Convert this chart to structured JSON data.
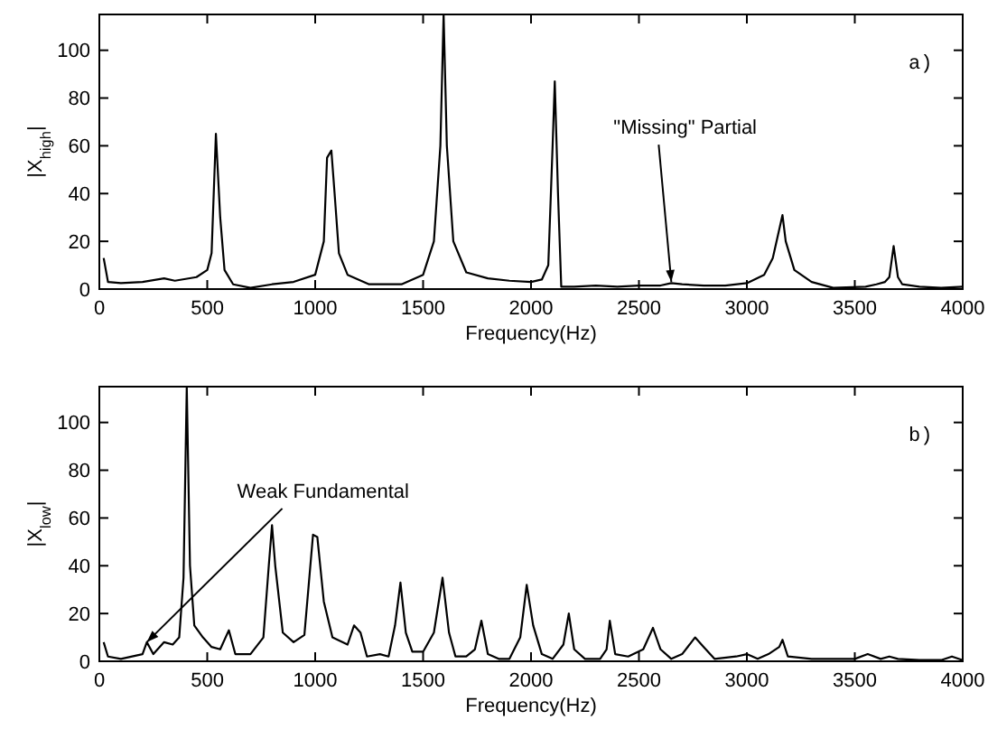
{
  "chart_data": [
    {
      "type": "line",
      "xlabel": "Frequency(Hz)",
      "ylabel": "|X$_{high}$|",
      "xlim": [
        0,
        4000
      ],
      "ylim": [
        0,
        115
      ],
      "xticks": [
        0,
        500,
        1000,
        1500,
        2000,
        2500,
        3000,
        3500,
        4000
      ],
      "yticks": [
        0,
        20,
        40,
        60,
        80,
        100
      ],
      "grid": false,
      "annotations": [
        "a)",
        {
          "text": "\"Missing\" Partial",
          "x": 2650,
          "y": 3
        }
      ],
      "series": [
        {
          "color": "#000000",
          "x": [
            20,
            40,
            100,
            200,
            300,
            350,
            450,
            500,
            520,
            540,
            560,
            580,
            620,
            700,
            800,
            900,
            1000,
            1040,
            1055,
            1075,
            1090,
            1110,
            1150,
            1250,
            1400,
            1500,
            1550,
            1580,
            1595,
            1610,
            1640,
            1700,
            1800,
            1900,
            2000,
            2050,
            2080,
            2100,
            2110,
            2125,
            2140,
            2200,
            2300,
            2400,
            2500,
            2600,
            2650,
            2700,
            2800,
            2900,
            3000,
            3080,
            3120,
            3150,
            3165,
            3180,
            3220,
            3300,
            3400,
            3550,
            3600,
            3640,
            3660,
            3680,
            3700,
            3720,
            3800,
            3900,
            4000
          ],
          "values": [
            13,
            3,
            2.5,
            3,
            4.5,
            3.5,
            5,
            8,
            15,
            65,
            30,
            8,
            2,
            0.5,
            2,
            3,
            6,
            20,
            55,
            58,
            40,
            15,
            6,
            2,
            2,
            6,
            20,
            60,
            115,
            60,
            20,
            7,
            4.5,
            3.5,
            3,
            4,
            10,
            60,
            87,
            40,
            1,
            1,
            1.5,
            1,
            1.5,
            1.5,
            2.5,
            2,
            1.5,
            1.5,
            2.5,
            6,
            13,
            25,
            31,
            20,
            8,
            3,
            0.5,
            1,
            2,
            3,
            5,
            18,
            5,
            2,
            1,
            0.5,
            1
          ]
        }
      ]
    },
    {
      "type": "line",
      "xlabel": "Frequency(Hz)",
      "ylabel": "|X$_{low}$|",
      "xlim": [
        0,
        4000
      ],
      "ylim": [
        0,
        115
      ],
      "xticks": [
        0,
        500,
        1000,
        1500,
        2000,
        2500,
        3000,
        3500,
        4000
      ],
      "yticks": [
        0,
        20,
        40,
        60,
        80,
        100
      ],
      "grid": false,
      "annotations": [
        "b)",
        {
          "text": "Weak Fundamental",
          "x": 220,
          "y": 8
        }
      ],
      "series": [
        {
          "color": "#000000",
          "x": [
            20,
            40,
            100,
            200,
            220,
            250,
            300,
            340,
            370,
            390,
            405,
            420,
            440,
            480,
            520,
            560,
            600,
            630,
            700,
            760,
            785,
            800,
            815,
            850,
            900,
            950,
            990,
            1010,
            1040,
            1080,
            1150,
            1180,
            1210,
            1240,
            1300,
            1340,
            1370,
            1395,
            1420,
            1450,
            1500,
            1550,
            1590,
            1620,
            1650,
            1700,
            1740,
            1770,
            1800,
            1850,
            1900,
            1950,
            1980,
            2010,
            2050,
            2100,
            2150,
            2175,
            2200,
            2250,
            2320,
            2350,
            2365,
            2390,
            2450,
            2520,
            2565,
            2600,
            2650,
            2700,
            2760,
            2800,
            2850,
            2950,
            3000,
            3050,
            3100,
            3150,
            3165,
            3190,
            3300,
            3500,
            3560,
            3620,
            3660,
            3700,
            3800,
            3900,
            3950,
            4000
          ],
          "values": [
            8,
            2,
            1,
            3,
            8,
            3,
            8,
            7,
            10,
            35,
            115,
            40,
            15,
            10,
            6,
            5,
            13,
            3,
            3,
            10,
            40,
            57,
            40,
            12,
            8,
            11,
            53,
            52,
            25,
            10,
            7,
            15,
            12,
            2,
            3,
            2,
            15,
            33,
            12,
            4,
            4,
            12,
            35,
            12,
            2,
            2,
            5,
            17,
            3,
            1,
            1,
            10,
            32,
            15,
            3,
            1,
            7,
            20,
            5,
            1,
            1,
            5,
            17,
            3,
            2,
            5,
            14,
            5,
            1,
            3,
            10,
            6,
            1,
            2,
            3,
            1,
            3,
            6,
            9,
            2,
            1,
            1,
            3,
            1,
            2,
            1,
            0.5,
            0.5,
            2,
            0.5
          ]
        }
      ]
    }
  ]
}
